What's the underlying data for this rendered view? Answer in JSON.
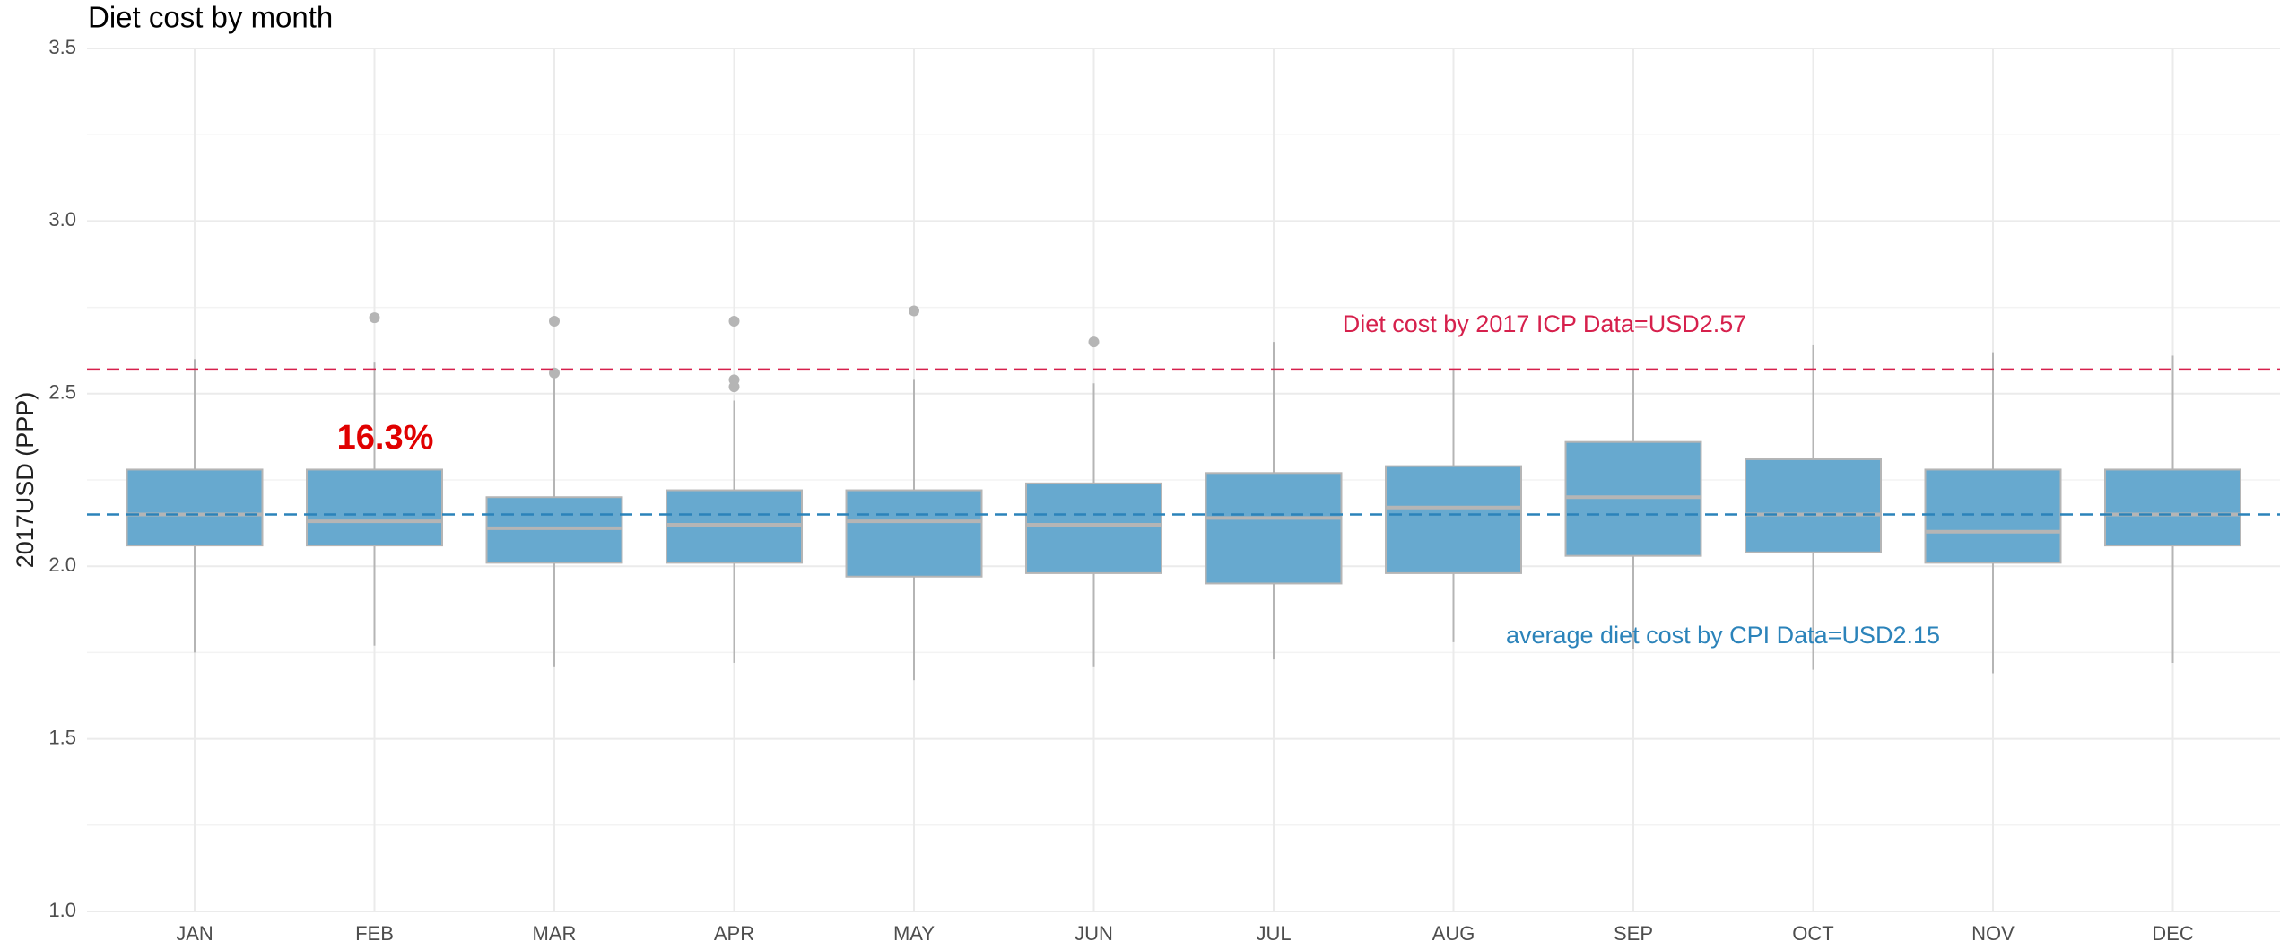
{
  "chart_data": {
    "type": "box",
    "title": "Diet cost by month",
    "y_label": "2017USD (PPP)",
    "categories": [
      "JAN",
      "FEB",
      "MAR",
      "APR",
      "MAY",
      "JUN",
      "JUL",
      "AUG",
      "SEP",
      "OCT",
      "NOV",
      "DEC"
    ],
    "boxes": [
      {
        "low": 1.75,
        "q1": 2.06,
        "median": 2.15,
        "q3": 2.28,
        "high": 2.6,
        "outliers": []
      },
      {
        "low": 1.77,
        "q1": 2.06,
        "median": 2.13,
        "q3": 2.28,
        "high": 2.59,
        "outliers": [
          2.72
        ]
      },
      {
        "low": 1.71,
        "q1": 2.01,
        "median": 2.11,
        "q3": 2.2,
        "high": 2.55,
        "outliers": [
          2.71,
          2.56
        ]
      },
      {
        "low": 1.72,
        "q1": 2.01,
        "median": 2.12,
        "q3": 2.22,
        "high": 2.48,
        "outliers": [
          2.71,
          2.54,
          2.52
        ]
      },
      {
        "low": 1.67,
        "q1": 1.97,
        "median": 2.13,
        "q3": 2.22,
        "high": 2.54,
        "outliers": [
          2.74
        ]
      },
      {
        "low": 1.71,
        "q1": 1.98,
        "median": 2.12,
        "q3": 2.24,
        "high": 2.53,
        "outliers": [
          2.65
        ]
      },
      {
        "low": 1.73,
        "q1": 1.95,
        "median": 2.14,
        "q3": 2.27,
        "high": 2.65,
        "outliers": []
      },
      {
        "low": 1.78,
        "q1": 1.98,
        "median": 2.17,
        "q3": 2.29,
        "high": 2.57,
        "outliers": []
      },
      {
        "low": 1.76,
        "q1": 2.03,
        "median": 2.2,
        "q3": 2.36,
        "high": 2.57,
        "outliers": []
      },
      {
        "low": 1.7,
        "q1": 2.04,
        "median": 2.15,
        "q3": 2.31,
        "high": 2.64,
        "outliers": []
      },
      {
        "low": 1.69,
        "q1": 2.01,
        "median": 2.1,
        "q3": 2.28,
        "high": 2.62,
        "outliers": []
      },
      {
        "low": 1.72,
        "q1": 2.06,
        "median": 2.15,
        "q3": 2.28,
        "high": 2.61,
        "outliers": []
      }
    ],
    "color": "#67a9cf",
    "outline_color": "#b5b5b5",
    "reference_lines": [
      {
        "value": 2.57,
        "label": "Diet cost by 2017 ICP Data=USD2.57",
        "color": "#d6204c"
      },
      {
        "value": 2.15,
        "label": "average diet cost by CPI Data=USD2.15",
        "color": "#2b83ba"
      }
    ],
    "annotations": [
      {
        "text": "16.3%",
        "color": "#e00000"
      }
    ],
    "ylim": [
      1.0,
      3.5
    ],
    "yticks": [
      {
        "value": 1.0,
        "label": "1.0"
      },
      1.5,
      {
        "value": 2.0,
        "label": "2.0"
      },
      2.5,
      {
        "value": 3.0,
        "label": "3.0"
      },
      3.5
    ],
    "grid": true
  }
}
